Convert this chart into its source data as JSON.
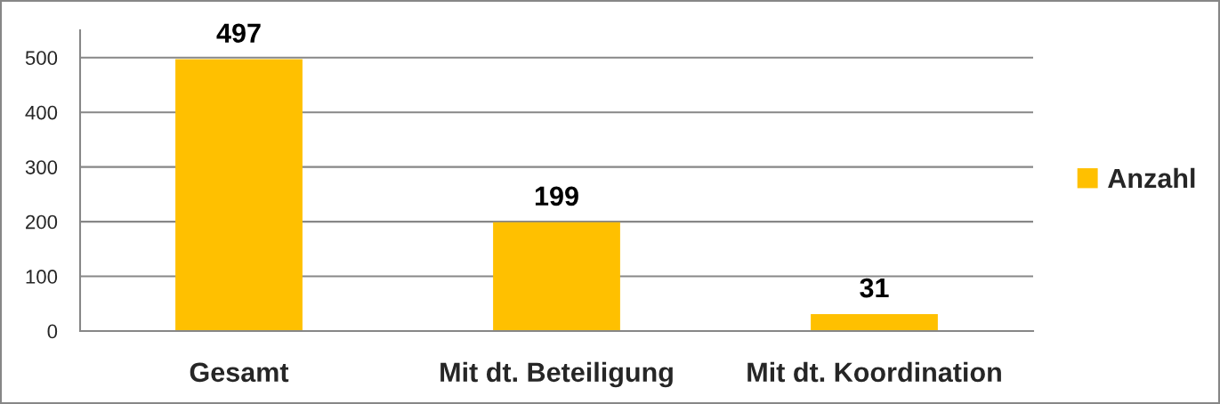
{
  "chart_data": {
    "type": "bar",
    "categories": [
      "Gesamt",
      "Mit dt. Beteiligung",
      "Mit dt. Koordination"
    ],
    "series": [
      {
        "name": "Anzahl",
        "color": "#ffc000",
        "values": [
          497,
          199,
          31
        ]
      }
    ],
    "ylim": [
      0,
      550
    ],
    "yticks": [
      0,
      100,
      200,
      300,
      400,
      500
    ],
    "grid": "y",
    "legend": "right",
    "data_labels": true
  }
}
